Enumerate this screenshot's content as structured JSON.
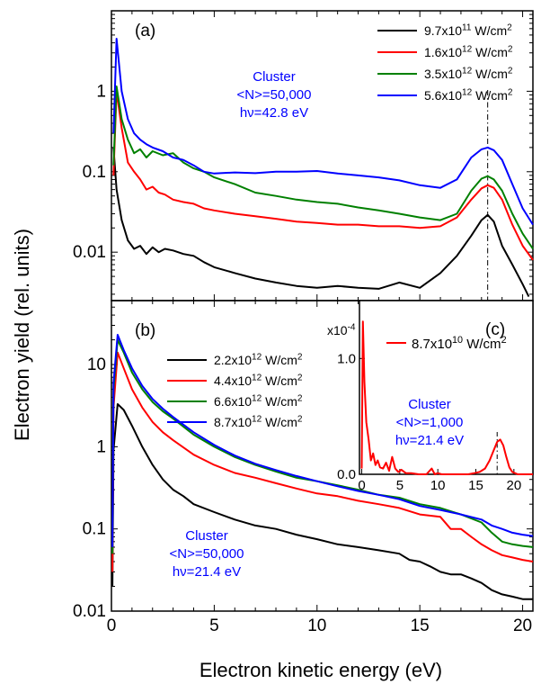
{
  "figure": {
    "ylabel": "Electron yield (rel. units)",
    "xlabel": "Electron kinetic energy (eV)"
  },
  "chart_data": [
    {
      "type": "line",
      "panel": "(a)",
      "xlim": [
        0,
        20.5
      ],
      "ylim": [
        0.0025,
        10
      ],
      "yscale": "log",
      "x_ticks": [
        0,
        5,
        10,
        15,
        20
      ],
      "y_ticks": [
        "0.01",
        "0.1",
        "1"
      ],
      "annotation_lines": [
        "Cluster",
        "<N>=50,000",
        "hν=42.8 eV"
      ],
      "vline_x": 18.3,
      "legend_position": "top-right",
      "series": [
        {
          "name_base": "9.7x10",
          "name_exp": "11",
          "name_unit": " W/cm",
          "color": "#000000",
          "x": [
            0.1,
            0.25,
            0.5,
            0.8,
            1.1,
            1.4,
            1.7,
            2.0,
            2.3,
            2.6,
            3.0,
            3.5,
            4.0,
            4.5,
            5.0,
            6.0,
            7.0,
            8.0,
            9.0,
            10.0,
            11.0,
            12.0,
            13.0,
            14.0,
            15.0,
            16.0,
            16.8,
            17.5,
            18.0,
            18.3,
            18.6,
            19.0,
            19.5,
            20.0,
            20.3
          ],
          "y": [
            0.2,
            0.06,
            0.025,
            0.014,
            0.011,
            0.012,
            0.0095,
            0.0115,
            0.01,
            0.011,
            0.0105,
            0.0095,
            0.009,
            0.0075,
            0.0065,
            0.0055,
            0.0047,
            0.0042,
            0.0038,
            0.0036,
            0.0038,
            0.0036,
            0.0035,
            0.0042,
            0.0036,
            0.0055,
            0.009,
            0.016,
            0.025,
            0.029,
            0.024,
            0.012,
            0.007,
            0.004,
            0.0028
          ]
        },
        {
          "name_base": "1.6x10",
          "name_exp": "12",
          "name_unit": " W/cm",
          "color": "#ff0000",
          "x": [
            0.1,
            0.25,
            0.5,
            0.8,
            1.1,
            1.4,
            1.7,
            2.0,
            2.3,
            2.6,
            3.0,
            3.5,
            4.0,
            4.5,
            5.0,
            6.0,
            7.0,
            8.0,
            9.0,
            10.0,
            11.0,
            12.0,
            13.0,
            14.0,
            15.0,
            16.0,
            16.8,
            17.5,
            18.0,
            18.3,
            18.6,
            19.0,
            19.5,
            20.0,
            20.5
          ],
          "y": [
            0.09,
            1.0,
            0.35,
            0.13,
            0.1,
            0.08,
            0.06,
            0.065,
            0.055,
            0.052,
            0.045,
            0.042,
            0.04,
            0.035,
            0.033,
            0.03,
            0.028,
            0.026,
            0.024,
            0.023,
            0.022,
            0.022,
            0.021,
            0.021,
            0.02,
            0.021,
            0.027,
            0.045,
            0.062,
            0.068,
            0.063,
            0.045,
            0.022,
            0.012,
            0.008
          ]
        },
        {
          "name_base": "3.5x10",
          "name_exp": "12",
          "name_unit": " W/cm",
          "color": "#008000",
          "x": [
            0.1,
            0.25,
            0.5,
            0.8,
            1.1,
            1.4,
            1.7,
            2.0,
            2.5,
            3.0,
            3.5,
            4.0,
            4.5,
            5.0,
            6.0,
            7.0,
            8.0,
            9.0,
            10.0,
            11.0,
            12.0,
            13.0,
            14.0,
            15.0,
            16.0,
            16.8,
            17.5,
            18.0,
            18.3,
            18.6,
            19.0,
            19.5,
            20.0,
            20.5
          ],
          "y": [
            0.12,
            1.15,
            0.45,
            0.25,
            0.17,
            0.19,
            0.15,
            0.18,
            0.16,
            0.17,
            0.13,
            0.11,
            0.1,
            0.085,
            0.07,
            0.055,
            0.05,
            0.045,
            0.042,
            0.04,
            0.036,
            0.033,
            0.03,
            0.027,
            0.025,
            0.03,
            0.058,
            0.082,
            0.088,
            0.08,
            0.058,
            0.03,
            0.017,
            0.011
          ]
        },
        {
          "name_base": "5.6x10",
          "name_exp": "12",
          "name_unit": " W/cm",
          "color": "#0000ff",
          "x": [
            0.1,
            0.25,
            0.5,
            0.8,
            1.1,
            1.4,
            1.7,
            2.0,
            2.5,
            3.0,
            3.5,
            4.0,
            4.5,
            5.0,
            6.0,
            7.0,
            8.0,
            9.0,
            10.0,
            11.0,
            12.0,
            13.0,
            14.0,
            15.0,
            16.0,
            16.8,
            17.5,
            18.0,
            18.3,
            18.6,
            19.0,
            19.5,
            20.0,
            20.5
          ],
          "y": [
            0.3,
            4.5,
            1.0,
            0.45,
            0.3,
            0.25,
            0.22,
            0.2,
            0.18,
            0.15,
            0.14,
            0.12,
            0.1,
            0.095,
            0.098,
            0.096,
            0.1,
            0.1,
            0.102,
            0.095,
            0.09,
            0.085,
            0.078,
            0.068,
            0.063,
            0.08,
            0.15,
            0.19,
            0.2,
            0.185,
            0.14,
            0.07,
            0.035,
            0.022
          ]
        }
      ]
    },
    {
      "type": "line",
      "panel": "(b)",
      "xlim": [
        0,
        20.5
      ],
      "ylim": [
        0.01,
        60
      ],
      "yscale": "log",
      "x_ticks": [
        0,
        5,
        10,
        15,
        20
      ],
      "y_ticks": [
        "0.01",
        "0.1",
        "1",
        "10"
      ],
      "annotation_lines": [
        "Cluster",
        "<N>=50,000",
        "hν=21.4 eV"
      ],
      "legend_position": "top-center",
      "series": [
        {
          "name_base": "2.2x10",
          "name_exp": "12",
          "name_unit": " W/cm",
          "color": "#000000",
          "x": [
            0.05,
            0.1,
            0.3,
            0.6,
            1.0,
            1.5,
            2.0,
            2.5,
            3.0,
            3.5,
            4.0,
            5.0,
            6.0,
            7.0,
            8.0,
            9.0,
            10.0,
            11.0,
            12.0,
            13.0,
            14.0,
            14.5,
            15.0,
            15.5,
            16.0,
            16.5,
            17.0,
            17.5,
            18.0,
            18.5,
            19.0,
            19.5,
            20.0,
            20.5
          ],
          "y": [
            0.02,
            0.9,
            3.3,
            2.8,
            1.8,
            1.0,
            0.6,
            0.4,
            0.3,
            0.25,
            0.2,
            0.16,
            0.13,
            0.11,
            0.1,
            0.085,
            0.075,
            0.065,
            0.06,
            0.055,
            0.05,
            0.042,
            0.04,
            0.035,
            0.03,
            0.028,
            0.028,
            0.025,
            0.022,
            0.018,
            0.016,
            0.015,
            0.014,
            0.014
          ]
        },
        {
          "name_base": "4.4x10",
          "name_exp": "12",
          "name_unit": " W/cm",
          "color": "#ff0000",
          "x": [
            0.05,
            0.1,
            0.3,
            0.6,
            1.0,
            1.5,
            2.0,
            2.5,
            3.0,
            4.0,
            5.0,
            6.0,
            7.0,
            8.0,
            9.0,
            10.0,
            11.0,
            12.0,
            13.0,
            14.0,
            15.0,
            16.0,
            16.5,
            17.0,
            17.5,
            18.0,
            18.5,
            19.0,
            19.5,
            20.0,
            20.5
          ],
          "y": [
            0.03,
            3.0,
            14.0,
            9.0,
            5.0,
            3.0,
            2.0,
            1.5,
            1.2,
            0.8,
            0.6,
            0.48,
            0.42,
            0.36,
            0.31,
            0.27,
            0.25,
            0.22,
            0.2,
            0.18,
            0.15,
            0.14,
            0.1,
            0.1,
            0.08,
            0.065,
            0.055,
            0.048,
            0.045,
            0.042,
            0.04
          ]
        },
        {
          "name_base": "6.6x10",
          "name_exp": "12",
          "name_unit": " W/cm",
          "color": "#008000",
          "x": [
            0.05,
            0.1,
            0.3,
            0.6,
            1.0,
            1.5,
            2.0,
            2.5,
            3.0,
            4.0,
            5.0,
            6.0,
            7.0,
            8.0,
            9.0,
            10.0,
            11.0,
            12.0,
            13.0,
            14.0,
            15.0,
            16.0,
            17.0,
            18.0,
            18.5,
            19.0,
            19.5,
            20.0,
            20.5
          ],
          "y": [
            0.05,
            5.0,
            20.0,
            14.0,
            8.0,
            5.0,
            3.5,
            2.7,
            2.2,
            1.4,
            1.0,
            0.75,
            0.6,
            0.5,
            0.42,
            0.38,
            0.34,
            0.3,
            0.26,
            0.24,
            0.2,
            0.18,
            0.15,
            0.12,
            0.09,
            0.07,
            0.065,
            0.062,
            0.06
          ]
        },
        {
          "name_base": "8.7x10",
          "name_exp": "12",
          "name_unit": " W/cm",
          "color": "#0000ff",
          "x": [
            0.05,
            0.1,
            0.3,
            0.6,
            1.0,
            1.5,
            2.0,
            2.5,
            3.0,
            4.0,
            5.0,
            6.0,
            7.0,
            8.0,
            9.0,
            10.0,
            11.0,
            12.0,
            13.0,
            14.0,
            15.0,
            16.0,
            17.0,
            18.0,
            18.5,
            19.0,
            19.5,
            20.0,
            20.5
          ],
          "y": [
            0.06,
            6.0,
            23.0,
            15.0,
            9.0,
            5.5,
            3.8,
            2.9,
            2.3,
            1.5,
            1.05,
            0.78,
            0.62,
            0.52,
            0.44,
            0.38,
            0.33,
            0.29,
            0.26,
            0.23,
            0.19,
            0.17,
            0.15,
            0.13,
            0.11,
            0.1,
            0.09,
            0.085,
            0.082
          ]
        }
      ]
    },
    {
      "type": "line",
      "panel": "(c)",
      "xlim": [
        -0.3,
        22.5
      ],
      "ylim": [
        0,
        1.5
      ],
      "yscale": "linear",
      "y_multiplier_base": "x10",
      "y_multiplier_exp": "-4",
      "x_ticks": [
        0,
        5,
        10,
        15,
        20
      ],
      "y_ticks": [
        "0.0",
        "1.0"
      ],
      "annotation_lines": [
        "Cluster",
        "<N>=1,000",
        "hν=21.4 eV"
      ],
      "vline_x": 17.8,
      "series": [
        {
          "name_base": "8.7x10",
          "name_exp": "10",
          "name_unit": " W/cm",
          "color": "#ff0000",
          "x": [
            0,
            0.15,
            0.35,
            0.6,
            0.9,
            1.2,
            1.5,
            1.8,
            2.1,
            2.4,
            2.8,
            3.2,
            3.6,
            4.0,
            4.4,
            4.8,
            5.2,
            5.8,
            6.5,
            7.5,
            8.5,
            9.2,
            9.6,
            10.0,
            10.5,
            11.0,
            12.0,
            13.0,
            14.0,
            14.8,
            15.5,
            16.2,
            16.8,
            17.3,
            17.8,
            18.2,
            18.6,
            19.0,
            19.4,
            19.8,
            20.5,
            21.5,
            22.5
          ],
          "y": [
            0.05,
            1.32,
            0.8,
            0.45,
            0.3,
            0.12,
            0.18,
            0.08,
            0.12,
            0.06,
            0.05,
            0.1,
            0.03,
            0.15,
            0.05,
            0.02,
            0.04,
            0.01,
            0.01,
            0.0,
            0.0,
            0.05,
            0.0,
            0.01,
            0.0,
            0.0,
            0.0,
            0.0,
            0.0,
            0.01,
            0.02,
            0.05,
            0.12,
            0.2,
            0.28,
            0.3,
            0.25,
            0.15,
            0.06,
            0.02,
            0.0,
            0.0,
            0.0
          ]
        }
      ]
    }
  ]
}
